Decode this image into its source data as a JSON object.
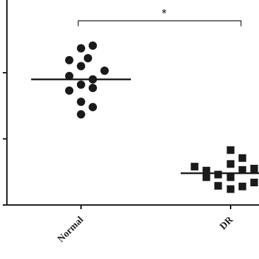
{
  "chart_data": {
    "type": "dot",
    "categories": [
      "Normal",
      "DR"
    ],
    "markers": [
      "circle",
      "square"
    ],
    "color": "#1a1a1a",
    "values": [
      [
        2.37,
        2.41,
        2.19,
        2.22,
        2.1,
        2.03,
        1.95,
        1.9,
        1.82,
        1.73,
        1.77,
        1.56,
        1.48,
        1.37
      ],
      [
        0.83,
        0.58,
        0.52,
        0.46,
        0.62,
        0.71,
        0.53,
        0.55,
        0.42,
        0.29,
        0.24,
        0.28,
        0.34,
        0.42
      ]
    ],
    "means": [
      1.9,
      0.48
    ],
    "ylim": [
      0,
      3.1
    ],
    "yticks": [
      0,
      1,
      2
    ],
    "annotation": "*"
  }
}
